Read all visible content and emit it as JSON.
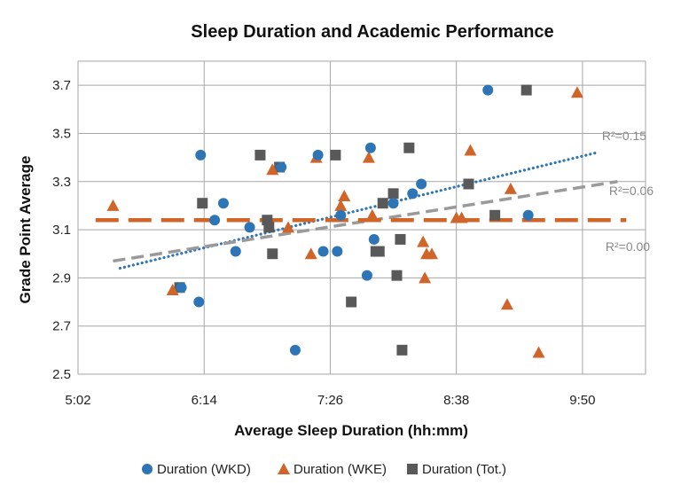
{
  "chart_data": {
    "type": "scatter",
    "title": "Sleep Duration and Academic Performance",
    "xlabel": "Average Sleep Duration (hh:mm)",
    "ylabel": "Grade Point Average",
    "x_unit": "hh:mm",
    "xlim": [
      "5:02",
      "10:26"
    ],
    "ylim": [
      2.5,
      3.8
    ],
    "x_ticks": [
      "5:02",
      "6:14",
      "7:26",
      "8:38",
      "9:50"
    ],
    "y_ticks": [
      "2.5",
      "2.7",
      "2.9",
      "3.1",
      "3.3",
      "3.5",
      "3.7"
    ],
    "grid": true,
    "legend_position": "bottom",
    "series": [
      {
        "name": "Duration (WKD)",
        "marker": "circle",
        "color": "#2e75b6",
        "points": [
          [
            "6:12",
            3.41
          ],
          [
            "6:25",
            3.21
          ],
          [
            "6:20",
            3.14
          ],
          [
            "6:32",
            3.01
          ],
          [
            "6:40",
            3.11
          ],
          [
            "6:58",
            3.36
          ],
          [
            "6:01",
            2.86
          ],
          [
            "6:11",
            2.8
          ],
          [
            "7:19",
            3.41
          ],
          [
            "7:22",
            3.01
          ],
          [
            "7:30",
            3.01
          ],
          [
            "7:32",
            3.16
          ],
          [
            "7:47",
            2.91
          ],
          [
            "7:49",
            3.44
          ],
          [
            "7:51",
            3.06
          ],
          [
            "7:06",
            2.6
          ],
          [
            "8:02",
            3.21
          ],
          [
            "8:13",
            3.25
          ],
          [
            "8:18",
            3.29
          ],
          [
            "8:56",
            3.68
          ],
          [
            "9:19",
            3.16
          ]
        ]
      },
      {
        "name": "Duration (WKE)",
        "marker": "triangle",
        "color": "#d0652a",
        "points": [
          [
            "5:22",
            3.2
          ],
          [
            "5:56",
            2.85
          ],
          [
            "6:53",
            3.35
          ],
          [
            "7:02",
            3.11
          ],
          [
            "7:15",
            3.0
          ],
          [
            "7:18",
            3.4
          ],
          [
            "7:32",
            3.2
          ],
          [
            "7:34",
            3.24
          ],
          [
            "7:48",
            3.4
          ],
          [
            "7:50",
            3.16
          ],
          [
            "8:19",
            3.05
          ],
          [
            "8:20",
            2.9
          ],
          [
            "8:21",
            3.0
          ],
          [
            "8:24",
            3.0
          ],
          [
            "8:38",
            3.15
          ],
          [
            "8:41",
            3.15
          ],
          [
            "8:46",
            3.43
          ],
          [
            "9:07",
            2.79
          ],
          [
            "9:09",
            3.27
          ],
          [
            "9:25",
            2.59
          ],
          [
            "9:47",
            3.67
          ]
        ]
      },
      {
        "name": "Duration (Tot.)",
        "marker": "square",
        "color": "#595959",
        "points": [
          [
            "6:00",
            2.86
          ],
          [
            "6:13",
            3.21
          ],
          [
            "6:46",
            3.41
          ],
          [
            "6:50",
            3.14
          ],
          [
            "6:51",
            3.11
          ],
          [
            "6:53",
            3.0
          ],
          [
            "6:57",
            3.36
          ],
          [
            "7:29",
            3.41
          ],
          [
            "7:38",
            2.8
          ],
          [
            "7:52",
            3.01
          ],
          [
            "7:54",
            3.01
          ],
          [
            "7:56",
            3.21
          ],
          [
            "8:02",
            3.25
          ],
          [
            "8:04",
            2.91
          ],
          [
            "8:06",
            3.06
          ],
          [
            "8:07",
            2.6
          ],
          [
            "8:11",
            3.44
          ],
          [
            "8:45",
            3.29
          ],
          [
            "9:00",
            3.16
          ],
          [
            "9:18",
            3.68
          ]
        ]
      }
    ],
    "trendlines": [
      {
        "series": "Duration (WKD)",
        "label": "R²=0.15",
        "color": "#2e75b6",
        "style": "dotted",
        "x": [
          "5:26",
          "9:58"
        ],
        "y": [
          2.94,
          3.42
        ]
      },
      {
        "series": "Duration (Tot.)",
        "label": "R²=0.06",
        "color": "#9a9a9a",
        "style": "dashed",
        "x": [
          "5:22",
          "10:10"
        ],
        "y": [
          2.97,
          3.3
        ]
      },
      {
        "series": "Duration (WKE)",
        "label": "R²=0.00",
        "color": "#d0652a",
        "style": "long-dash",
        "x": [
          "5:12",
          "10:15"
        ],
        "y": [
          3.14,
          3.14
        ]
      }
    ]
  }
}
